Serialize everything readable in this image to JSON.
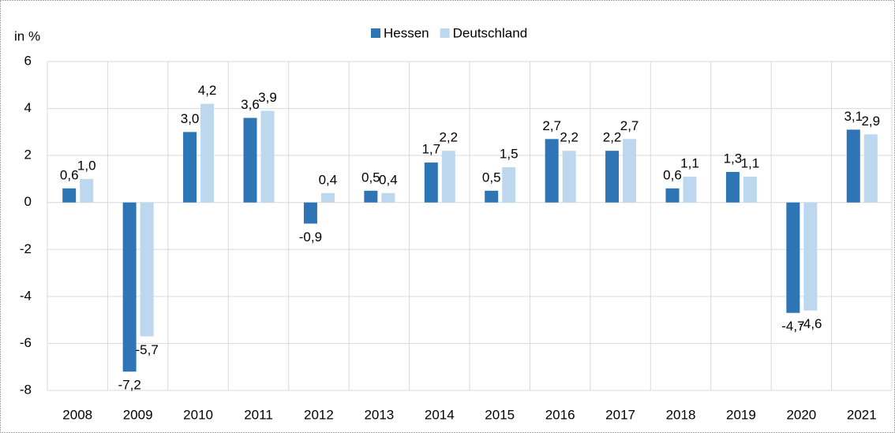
{
  "chart_data": {
    "type": "bar",
    "y_label": "in %",
    "categories": [
      "2008",
      "2009",
      "2010",
      "2011",
      "2012",
      "2013",
      "2014",
      "2015",
      "2016",
      "2017",
      "2018",
      "2019",
      "2020",
      "2021"
    ],
    "series": [
      {
        "name": "Hessen",
        "color": "#2e75b6",
        "values": [
          0.6,
          -7.2,
          3.0,
          3.6,
          -0.9,
          0.5,
          1.7,
          0.5,
          2.7,
          2.2,
          0.6,
          1.3,
          -4.7,
          3.1
        ],
        "value_labels": [
          "0,6",
          "-7,2",
          "3,0",
          "3,6",
          "-0,9",
          "0,5",
          "1,7",
          "0,5",
          "2,7",
          "2,2",
          "0,6",
          "1,3",
          "-4,7",
          "3,1"
        ]
      },
      {
        "name": "Deutschland",
        "color": "#bdd7ee",
        "values": [
          1.0,
          -5.7,
          4.2,
          3.9,
          0.4,
          0.4,
          2.2,
          1.5,
          2.2,
          2.7,
          1.1,
          1.1,
          -4.6,
          2.9
        ],
        "value_labels": [
          "1,0",
          "-5,7",
          "4,2",
          "3,9",
          "0,4",
          "0,4",
          "2,2",
          "1,5",
          "2,2",
          "2,7",
          "1,1",
          "1,1",
          "-4,6",
          "2,9"
        ]
      }
    ],
    "ylim": [
      -8,
      6
    ],
    "yticks": [
      -8,
      -6,
      -4,
      -2,
      0,
      2,
      4,
      6
    ],
    "grid": true,
    "legend": "top"
  }
}
